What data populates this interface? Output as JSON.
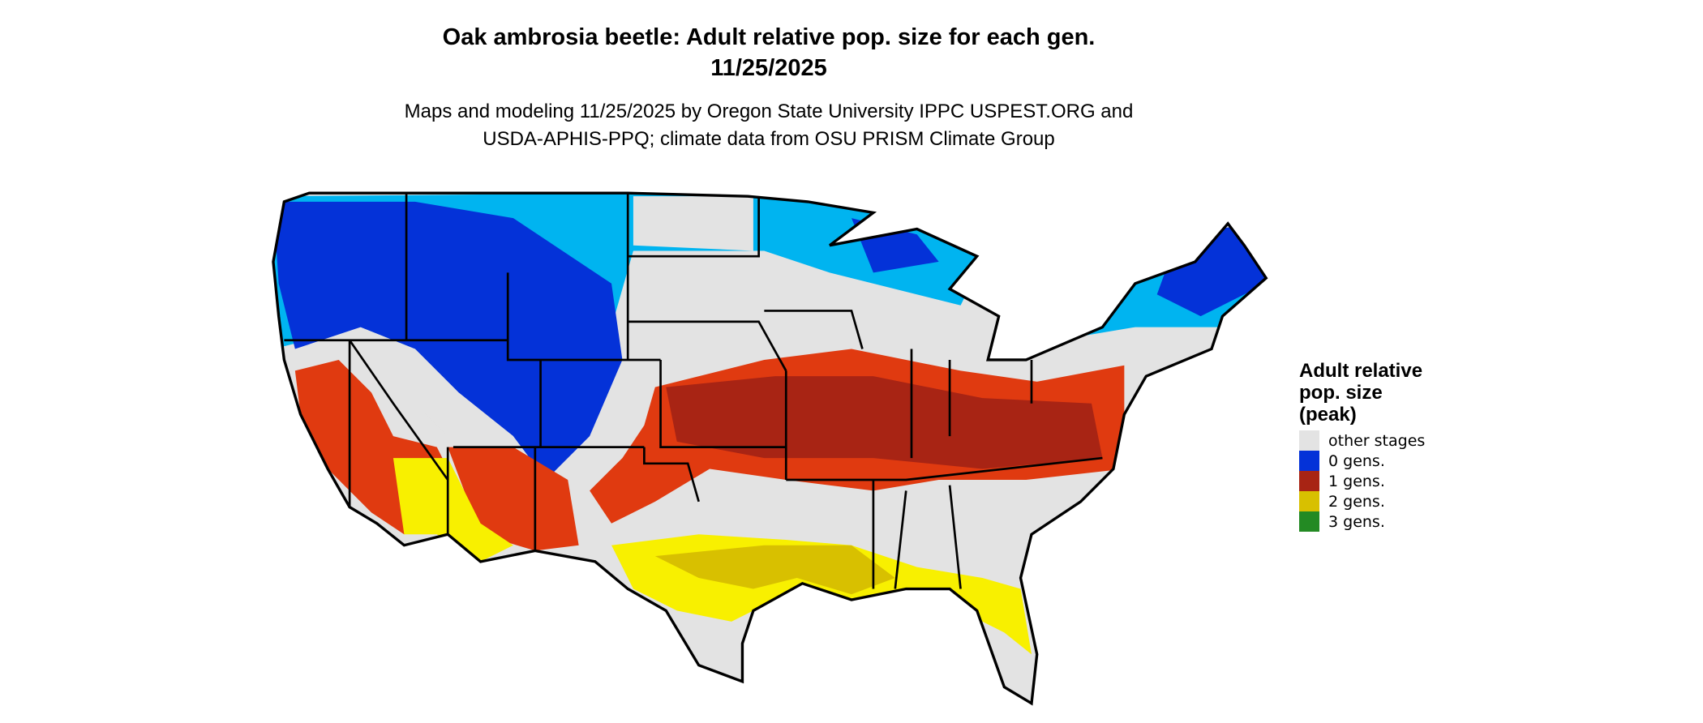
{
  "title": {
    "line1": "Oak ambrosia beetle: Adult relative pop. size for each gen.",
    "line2": "11/25/2025"
  },
  "subtitle": {
    "line1": "Maps and modeling 11/25/2025 by Oregon State University IPPC USPEST.ORG and",
    "line2": "USDA-APHIS-PPQ; climate data from OSU PRISM Climate Group"
  },
  "legend": {
    "title_lines": [
      "Adult relative",
      "pop. size",
      "(peak)"
    ],
    "items": [
      {
        "label": "other stages",
        "color": "#e3e3e3"
      },
      {
        "label": "0 gens.",
        "color": "#0432d8"
      },
      {
        "label": "1 gens.",
        "color": "#a82414"
      },
      {
        "label": "2 gens.",
        "color": "#d8c000"
      },
      {
        "label": "3 gens.",
        "color": "#238a23"
      }
    ]
  },
  "map": {
    "background_color": "#e3e3e3",
    "border_color": "#000000",
    "accent_colors": {
      "light_blue": "#00b4f0",
      "orange_red": "#e03a10",
      "bright_yellow": "#f8f000"
    }
  }
}
